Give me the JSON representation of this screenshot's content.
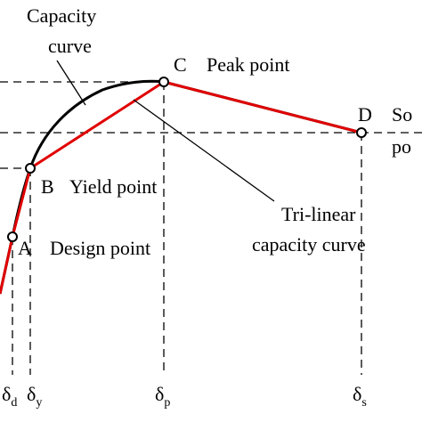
{
  "annotations": {
    "capacity_curve_line1": "Capacity",
    "capacity_curve_line2": "curve",
    "trilinear_line1": "Tri-linear",
    "trilinear_line2": "capacity curve"
  },
  "points": {
    "A": {
      "letter": "A",
      "label": "Design point"
    },
    "B": {
      "letter": "B",
      "label": "Yield point"
    },
    "C": {
      "letter": "C",
      "label": "Peak point"
    },
    "D": {
      "letter": "D",
      "label_line1": "So",
      "label_line2": "po"
    }
  },
  "x_axis": {
    "ticks": [
      {
        "main": "δ",
        "sub": "d"
      },
      {
        "main": "δ",
        "sub": "y"
      },
      {
        "main": "δ",
        "sub": "p"
      },
      {
        "main": "δ",
        "sub": "s"
      }
    ]
  },
  "colors": {
    "capacity_curve": "#000000",
    "trilinear_curve": "#e00000",
    "points": "#000000",
    "guides": "#000000"
  }
}
